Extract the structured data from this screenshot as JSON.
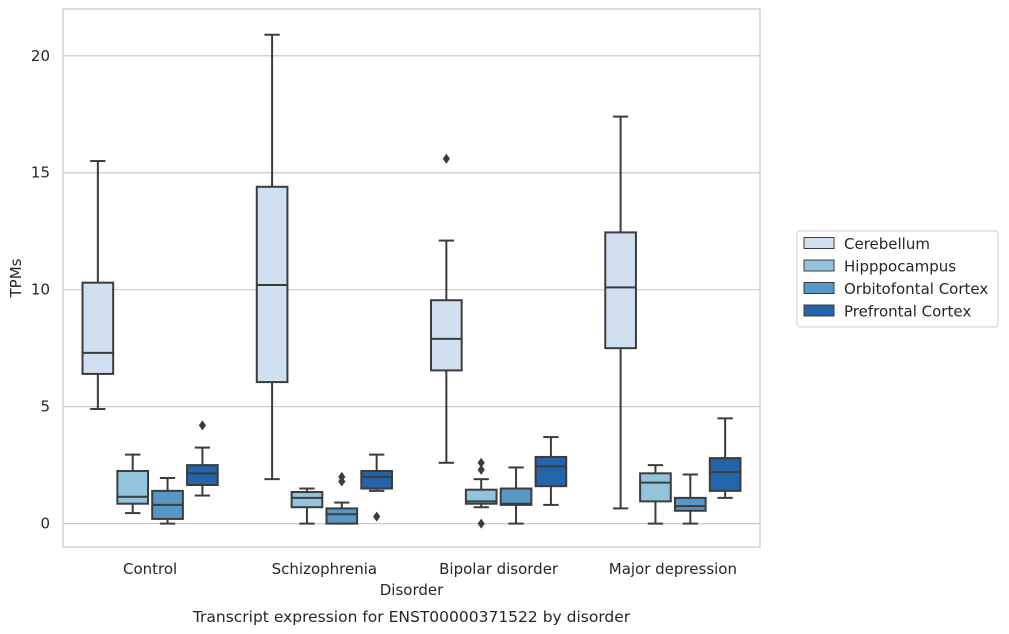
{
  "chart_data": {
    "type": "box",
    "caption": "Transcript expression for ENST00000371522 by disorder",
    "xlabel": "Disorder",
    "ylabel": "TPMs",
    "ylim": [
      -1,
      22
    ],
    "yticks": [
      0,
      5,
      10,
      15,
      20
    ],
    "grid": "horizontal",
    "legend_position": "right",
    "categories": [
      "Control",
      "Schizophrenia",
      "Bipolar disorder",
      "Major depression"
    ],
    "series": [
      {
        "name": "Cerebellum",
        "color": "#d1e0f0",
        "boxes": [
          {
            "whisker_low": 4.9,
            "q1": 6.4,
            "median": 7.3,
            "q3": 10.3,
            "whisker_high": 15.5,
            "outliers": []
          },
          {
            "whisker_low": 1.9,
            "q1": 6.05,
            "median": 10.2,
            "q3": 14.4,
            "whisker_high": 20.9,
            "outliers": []
          },
          {
            "whisker_low": 2.6,
            "q1": 6.55,
            "median": 7.9,
            "q3": 9.55,
            "whisker_high": 12.1,
            "outliers": [
              15.6
            ]
          },
          {
            "whisker_low": 0.65,
            "q1": 7.5,
            "median": 10.1,
            "q3": 12.45,
            "whisker_high": 17.4,
            "outliers": []
          }
        ]
      },
      {
        "name": "Hipppocampus",
        "color": "#93c4de",
        "boxes": [
          {
            "whisker_low": 0.45,
            "q1": 0.85,
            "median": 1.15,
            "q3": 2.25,
            "whisker_high": 2.95,
            "outliers": []
          },
          {
            "whisker_low": 0.0,
            "q1": 0.7,
            "median": 1.1,
            "q3": 1.35,
            "whisker_high": 1.5,
            "outliers": []
          },
          {
            "whisker_low": 0.7,
            "q1": 0.85,
            "median": 0.95,
            "q3": 1.45,
            "whisker_high": 1.9,
            "outliers": [
              2.3,
              2.6,
              0.0
            ]
          },
          {
            "whisker_low": 0.0,
            "q1": 0.95,
            "median": 1.75,
            "q3": 2.15,
            "whisker_high": 2.5,
            "outliers": []
          }
        ]
      },
      {
        "name": "Orbitofontal Cortex",
        "color": "#5697c6",
        "boxes": [
          {
            "whisker_low": 0.0,
            "q1": 0.2,
            "median": 0.8,
            "q3": 1.4,
            "whisker_high": 1.95,
            "outliers": []
          },
          {
            "whisker_low": 0.0,
            "q1": 0.0,
            "median": 0.4,
            "q3": 0.65,
            "whisker_high": 0.9,
            "outliers": [
              1.8,
              2.0
            ]
          },
          {
            "whisker_low": 0.0,
            "q1": 0.8,
            "median": 0.85,
            "q3": 1.5,
            "whisker_high": 2.4,
            "outliers": []
          },
          {
            "whisker_low": 0.0,
            "q1": 0.55,
            "median": 0.75,
            "q3": 1.1,
            "whisker_high": 2.1,
            "outliers": []
          }
        ]
      },
      {
        "name": "Prefrontal Cortex",
        "color": "#2464a8",
        "boxes": [
          {
            "whisker_low": 1.2,
            "q1": 1.65,
            "median": 2.15,
            "q3": 2.5,
            "whisker_high": 3.25,
            "outliers": [
              4.2
            ]
          },
          {
            "whisker_low": 1.4,
            "q1": 1.5,
            "median": 2.0,
            "q3": 2.25,
            "whisker_high": 2.95,
            "outliers": [
              0.3
            ]
          },
          {
            "whisker_low": 0.8,
            "q1": 1.6,
            "median": 2.45,
            "q3": 2.85,
            "whisker_high": 3.7,
            "outliers": []
          },
          {
            "whisker_low": 1.1,
            "q1": 1.4,
            "median": 2.2,
            "q3": 2.8,
            "whisker_high": 4.5,
            "outliers": []
          }
        ]
      }
    ]
  }
}
